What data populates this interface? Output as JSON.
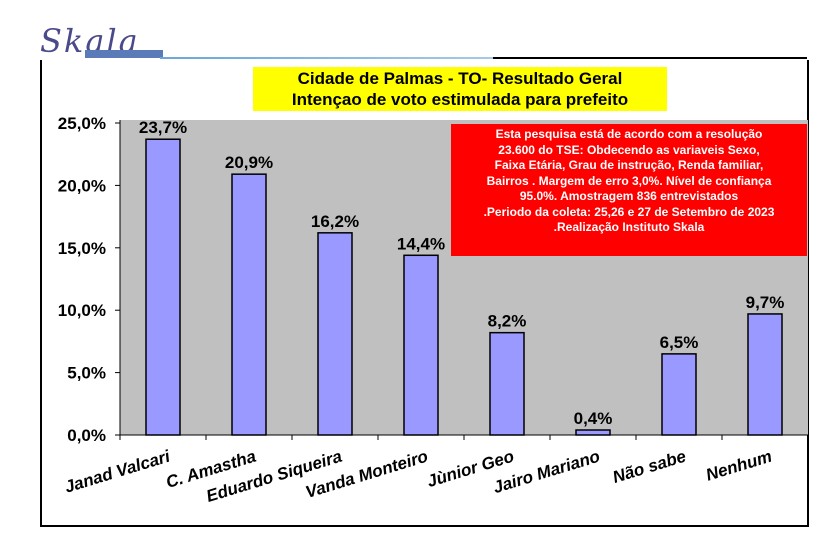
{
  "logo": {
    "text": "Skala"
  },
  "chart_data": {
    "type": "bar",
    "title": "Cidade de Palmas - TO- Resultado Geral",
    "subtitle": "Intençao de voto estimulada  para prefeito",
    "categories": [
      "Janad Valcari",
      "C. Amastha",
      "Eduardo Siqueira",
      "Vanda Monteiro",
      "Jùnior Geo",
      "Jairo Mariano",
      "Não sabe",
      "Nenhum"
    ],
    "values": [
      23.7,
      20.9,
      16.2,
      14.4,
      8.2,
      0.4,
      6.5,
      9.7
    ],
    "data_labels": [
      "23,7%",
      "20,9%",
      "16,2%",
      "14,4%",
      "8,2%",
      "0,4%",
      "6,5%",
      "9,7%"
    ],
    "yticks": [
      "0,0%",
      "5,0%",
      "10,0%",
      "15,0%",
      "20,0%",
      "25,0%"
    ],
    "ylim": [
      0,
      25
    ],
    "grid": false,
    "colors": {
      "bar": "#9999ff",
      "plot_bg": "#c0c0c0",
      "title_bg": "#ffff00",
      "note_bg": "#ff0000"
    },
    "annotation": [
      "Esta pesquisa está de acordo com a resolução",
      "23.600 do TSE: Obdecendo as variaveis Sexo,",
      "Faixa Etária, Grau de instrução, Renda familiar,",
      "Bairros . Margem de erro 3,0%. Nível de confiança",
      "95.0%. Amostragem 836 entrevistados",
      ".Periodo da coleta: 25,26 e 27 de Setembro de 2023",
      ".Realização Instituto Skala"
    ]
  }
}
